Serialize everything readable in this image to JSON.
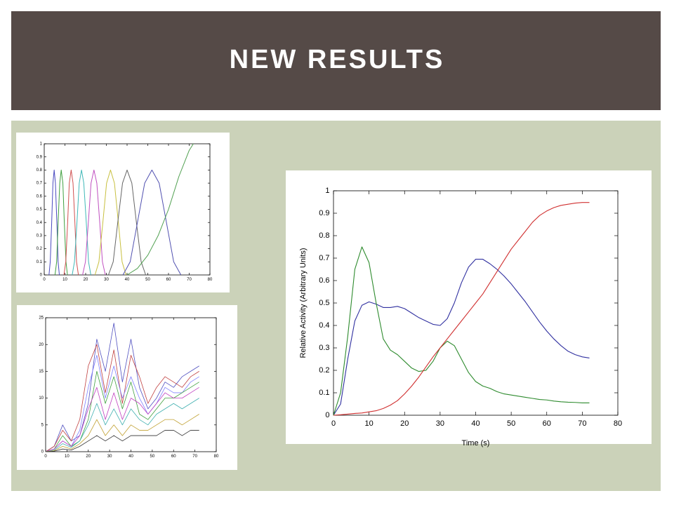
{
  "header": {
    "title": "NEW RESULTS"
  },
  "chart_data": [
    {
      "type": "line",
      "xlim": [
        0,
        80
      ],
      "ylim": [
        0,
        1
      ],
      "xticks": [
        0,
        10,
        20,
        30,
        40,
        50,
        60,
        70,
        80
      ],
      "yticks": [
        0,
        0.1,
        0.2,
        0.3,
        0.4,
        0.5,
        0.6,
        0.7,
        0.8,
        0.9,
        1
      ],
      "grid": false,
      "series": [
        {
          "color": "#4a4ac0",
          "x": [
            2.3,
            2.9,
            3.6,
            4.2,
            4.8,
            5.4,
            6.1,
            6.7,
            7.3
          ],
          "values": [
            0,
            0.1,
            0.4,
            0.7,
            0.8,
            0.7,
            0.4,
            0.1,
            0
          ]
        },
        {
          "color": "#40a040",
          "x": [
            5.2,
            6,
            6.7,
            7.5,
            8.2,
            9,
            9.7,
            10.5,
            11.2
          ],
          "values": [
            0,
            0.1,
            0.4,
            0.7,
            0.8,
            0.7,
            0.4,
            0.1,
            0
          ]
        },
        {
          "color": "#d05050",
          "x": [
            9.5,
            10.4,
            11.3,
            12.1,
            13,
            13.9,
            14.8,
            15.6,
            16.5
          ],
          "values": [
            0,
            0.1,
            0.4,
            0.7,
            0.8,
            0.7,
            0.4,
            0.1,
            0
          ]
        },
        {
          "color": "#40b8b8",
          "x": [
            13.5,
            14.6,
            15.8,
            16.9,
            18,
            19.1,
            20.3,
            21.4,
            22.5
          ],
          "values": [
            0,
            0.1,
            0.4,
            0.7,
            0.8,
            0.7,
            0.4,
            0.1,
            0
          ]
        },
        {
          "color": "#c050c0",
          "x": [
            18.5,
            19.9,
            21.3,
            22.6,
            24,
            25.4,
            26.8,
            28.1,
            29.5
          ],
          "values": [
            0,
            0.1,
            0.4,
            0.7,
            0.8,
            0.7,
            0.4,
            0.1,
            0
          ]
        },
        {
          "color": "#c8c040",
          "x": [
            24.5,
            26.4,
            28.3,
            30.1,
            32,
            33.9,
            35.8,
            37.6,
            39.5
          ],
          "values": [
            0,
            0.1,
            0.4,
            0.7,
            0.8,
            0.7,
            0.4,
            0.1,
            0
          ]
        },
        {
          "color": "#666666",
          "x": [
            31,
            33.3,
            35.5,
            37.8,
            40,
            42.3,
            44.5,
            46.8,
            49
          ],
          "values": [
            0,
            0.1,
            0.4,
            0.7,
            0.8,
            0.7,
            0.4,
            0.1,
            0
          ]
        },
        {
          "color": "#5050b0",
          "x": [
            38,
            41.5,
            45,
            48.5,
            52,
            55.5,
            59,
            62.5,
            66
          ],
          "values": [
            0,
            0.1,
            0.4,
            0.7,
            0.8,
            0.7,
            0.4,
            0.1,
            0
          ]
        },
        {
          "color": "#50a050",
          "x": [
            40,
            45,
            50,
            55,
            60,
            65,
            70,
            72
          ],
          "values": [
            0,
            0.05,
            0.15,
            0.3,
            0.5,
            0.75,
            0.95,
            1
          ]
        }
      ]
    },
    {
      "type": "line",
      "xlim": [
        0,
        80
      ],
      "ylim": [
        0,
        25
      ],
      "xticks": [
        0,
        10,
        20,
        30,
        40,
        50,
        60,
        70,
        80
      ],
      "yticks": [
        0,
        5,
        10,
        15,
        20,
        25
      ],
      "grid": false,
      "x": [
        0,
        4,
        8,
        12,
        16,
        20,
        24,
        28,
        32,
        36,
        40,
        44,
        48,
        52,
        56,
        60,
        64,
        68,
        72
      ],
      "series": [
        {
          "color": "#5050c0",
          "values": [
            0,
            1,
            5,
            2,
            3,
            9,
            21,
            15,
            24,
            13,
            21,
            12,
            8,
            10,
            13,
            12,
            14,
            15,
            16
          ]
        },
        {
          "color": "#c04040",
          "values": [
            0,
            1,
            4,
            2,
            6,
            16,
            20,
            11,
            19,
            9,
            18,
            14,
            9,
            12,
            14,
            13,
            12,
            14,
            15
          ]
        },
        {
          "color": "#8080ff",
          "values": [
            0,
            0.5,
            2,
            1,
            4,
            12,
            18,
            10,
            16,
            10,
            14,
            10,
            7,
            9,
            12,
            11,
            11,
            13,
            14
          ]
        },
        {
          "color": "#40a040",
          "values": [
            0,
            0.5,
            3,
            1,
            2,
            6,
            15,
            9,
            14,
            8,
            13,
            7,
            6,
            8,
            10,
            10,
            11,
            12,
            13
          ]
        },
        {
          "color": "#c040c0",
          "values": [
            0,
            0.5,
            2,
            1,
            3,
            8,
            12,
            6,
            11,
            6,
            10,
            9,
            7,
            9,
            11,
            10,
            10,
            11,
            12
          ]
        },
        {
          "color": "#40b0b0",
          "values": [
            0,
            0.3,
            1.5,
            0.8,
            2,
            5,
            9,
            5,
            8,
            5,
            8,
            6,
            5,
            7,
            8,
            9,
            8,
            9,
            10
          ]
        },
        {
          "color": "#c0a030",
          "values": [
            0,
            0.2,
            1,
            0.5,
            1.5,
            3,
            6,
            3,
            5,
            3,
            5,
            4,
            4,
            5,
            6,
            6,
            5,
            6,
            7
          ]
        },
        {
          "color": "#303030",
          "values": [
            0,
            0.1,
            0.5,
            0.3,
            1,
            2,
            3,
            2,
            3,
            2,
            3,
            3,
            3,
            3,
            4,
            4,
            3,
            4,
            4
          ]
        }
      ]
    },
    {
      "type": "line",
      "x_label": "Time (s)",
      "y_label": "Relative Activity (Arbitrary Units)",
      "xlim": [
        0,
        80
      ],
      "ylim": [
        0,
        1
      ],
      "xticks": [
        0,
        10,
        20,
        30,
        40,
        50,
        60,
        70,
        80
      ],
      "yticks": [
        0,
        0.1,
        0.2,
        0.3,
        0.4,
        0.5,
        0.6,
        0.7,
        0.8,
        0.9,
        1
      ],
      "grid": false,
      "x": [
        0,
        2,
        4,
        6,
        8,
        10,
        12,
        14,
        16,
        18,
        20,
        22,
        24,
        26,
        28,
        30,
        32,
        34,
        36,
        38,
        40,
        42,
        44,
        46,
        48,
        50,
        52,
        54,
        56,
        58,
        60,
        62,
        64,
        66,
        68,
        70,
        72
      ],
      "series": [
        {
          "color": "#3030a0",
          "values": [
            0,
            0.05,
            0.25,
            0.42,
            0.49,
            0.505,
            0.495,
            0.48,
            0.48,
            0.485,
            0.475,
            0.455,
            0.435,
            0.42,
            0.405,
            0.4,
            0.43,
            0.5,
            0.59,
            0.66,
            0.695,
            0.695,
            0.675,
            0.65,
            0.62,
            0.585,
            0.545,
            0.505,
            0.46,
            0.415,
            0.375,
            0.34,
            0.31,
            0.285,
            0.27,
            0.26,
            0.255
          ]
        },
        {
          "color": "#2e8b2e",
          "values": [
            0,
            0.1,
            0.35,
            0.65,
            0.75,
            0.68,
            0.5,
            0.34,
            0.29,
            0.27,
            0.24,
            0.21,
            0.195,
            0.2,
            0.24,
            0.3,
            0.33,
            0.31,
            0.25,
            0.19,
            0.15,
            0.13,
            0.12,
            0.105,
            0.095,
            0.09,
            0.085,
            0.08,
            0.075,
            0.07,
            0.068,
            0.063,
            0.06,
            0.058,
            0.057,
            0.055,
            0.055
          ]
        },
        {
          "color": "#d03030",
          "values": [
            0,
            0.002,
            0.005,
            0.008,
            0.01,
            0.015,
            0.02,
            0.03,
            0.045,
            0.065,
            0.095,
            0.13,
            0.17,
            0.215,
            0.26,
            0.3,
            0.34,
            0.38,
            0.42,
            0.46,
            0.5,
            0.54,
            0.59,
            0.64,
            0.69,
            0.74,
            0.78,
            0.82,
            0.86,
            0.89,
            0.91,
            0.925,
            0.935,
            0.94,
            0.945,
            0.948,
            0.948
          ]
        }
      ]
    }
  ]
}
